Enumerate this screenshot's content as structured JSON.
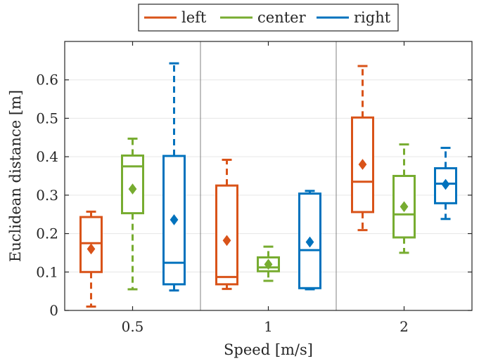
{
  "colors": {
    "left": "#D95319",
    "center": "#77AC30",
    "right": "#0072BD",
    "axis": "#262626",
    "grid": "#e6e6e6",
    "separator": "#808080"
  },
  "chart_data": {
    "type": "boxplot",
    "xlabel": "Speed [m/s]",
    "ylabel": "Euclidean distance [m]",
    "categories": [
      "0.5",
      "1",
      "2"
    ],
    "ylim": [
      0,
      0.7
    ],
    "yticks": [
      "0",
      "0.1",
      "0.2",
      "0.3",
      "0.4",
      "0.5",
      "0.6"
    ],
    "grid": true,
    "legend_position": "top-center, outside",
    "mean_marker": "diamond",
    "series": [
      {
        "name": "left",
        "color": "#D95319",
        "boxes": [
          {
            "whisker_low": 0.01,
            "q1": 0.1,
            "median": 0.175,
            "q3": 0.243,
            "whisker_high": 0.257,
            "mean": 0.16
          },
          {
            "whisker_low": 0.056,
            "q1": 0.068,
            "median": 0.087,
            "q3": 0.325,
            "whisker_high": 0.392,
            "mean": 0.182
          },
          {
            "whisker_low": 0.209,
            "q1": 0.256,
            "median": 0.335,
            "q3": 0.502,
            "whisker_high": 0.636,
            "mean": 0.38
          }
        ]
      },
      {
        "name": "center",
        "color": "#77AC30",
        "boxes": [
          {
            "whisker_low": 0.055,
            "q1": 0.253,
            "median": 0.375,
            "q3": 0.403,
            "whisker_high": 0.447,
            "mean": 0.316
          },
          {
            "whisker_low": 0.077,
            "q1": 0.102,
            "median": 0.112,
            "q3": 0.138,
            "whisker_high": 0.166,
            "mean": 0.12
          },
          {
            "whisker_low": 0.15,
            "q1": 0.19,
            "median": 0.25,
            "q3": 0.35,
            "whisker_high": 0.432,
            "mean": 0.27
          }
        ]
      },
      {
        "name": "right",
        "color": "#0072BD",
        "boxes": [
          {
            "whisker_low": 0.052,
            "q1": 0.068,
            "median": 0.124,
            "q3": 0.402,
            "whisker_high": 0.643,
            "mean": 0.236
          },
          {
            "whisker_low": 0.055,
            "q1": 0.058,
            "median": 0.157,
            "q3": 0.304,
            "whisker_high": 0.311,
            "mean": 0.178
          },
          {
            "whisker_low": 0.238,
            "q1": 0.279,
            "median": 0.33,
            "q3": 0.37,
            "whisker_high": 0.423,
            "mean": 0.328
          }
        ]
      }
    ]
  }
}
